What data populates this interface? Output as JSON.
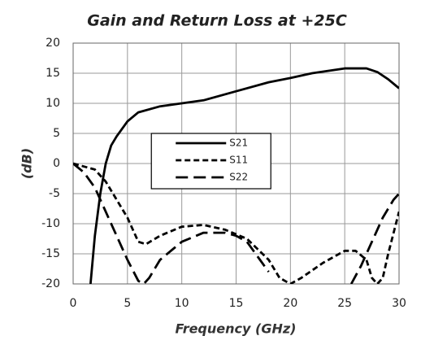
{
  "chart_data": {
    "type": "line",
    "title": "Gain and Return Loss at +25C",
    "x_label": "Frequency (GHz)",
    "y_label": "(dB)",
    "xlim": [
      0,
      30
    ],
    "xticks": [
      0,
      5,
      10,
      15,
      20,
      25,
      30
    ],
    "ylim": [
      -20,
      20
    ],
    "yticks": [
      -20,
      -15,
      -10,
      -5,
      0,
      5,
      10,
      15,
      20
    ],
    "grid": true,
    "legend": "center",
    "series": [
      {
        "name": "S21",
        "color": "#000000",
        "dash": "solid",
        "x": [
          1.6,
          2,
          2.5,
          3,
          3.5,
          4,
          5,
          6,
          8,
          10,
          12,
          15,
          18,
          20,
          22,
          25,
          27,
          28,
          29,
          30
        ],
        "values": [
          -20,
          -12,
          -5,
          0,
          3,
          4.5,
          7,
          8.5,
          9.5,
          10,
          10.5,
          12,
          13.5,
          14.2,
          15,
          15.8,
          15.8,
          15.2,
          14,
          12.5
        ]
      },
      {
        "name": "S11",
        "color": "#000000",
        "dash": "short",
        "x": [
          0,
          1,
          2,
          3,
          4,
          5,
          6,
          6.7,
          8,
          10,
          12,
          14,
          16,
          18,
          19,
          20,
          21,
          23,
          25,
          26,
          27,
          27.5,
          28,
          28.5,
          29,
          30
        ],
        "values": [
          0,
          -0.5,
          -1,
          -3,
          -6,
          -9,
          -13,
          -13.4,
          -12,
          -10.5,
          -10.2,
          -11,
          -12.5,
          -16,
          -19,
          -20,
          -19,
          -16.5,
          -14.5,
          -14.5,
          -16,
          -19,
          -20,
          -19,
          -15,
          -8
        ]
      },
      {
        "name": "S22",
        "color": "#000000",
        "dash": "long",
        "x": [
          0,
          1,
          2,
          3,
          4,
          5,
          6,
          6.5,
          7,
          8,
          10,
          12,
          14,
          15,
          16,
          18,
          19,
          25.6,
          26.5,
          27.5,
          28.5,
          29.5,
          30
        ],
        "values": [
          0,
          -1.5,
          -4,
          -8,
          -12,
          -16,
          -19.5,
          -20,
          -19,
          -16,
          -13,
          -11.5,
          -11.5,
          -12,
          -13,
          -18,
          null,
          -20,
          -17,
          -13,
          -9,
          -6,
          -5
        ]
      }
    ]
  }
}
